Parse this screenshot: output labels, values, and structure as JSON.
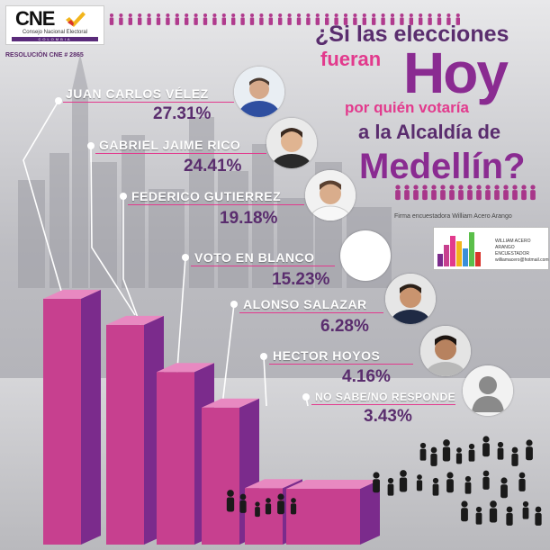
{
  "logo": {
    "text": "CNE",
    "subtitle": "Consejo Nacional Electoral",
    "country": "COLOMBIA"
  },
  "resolucion": "RESOLUCIÓN CNE # 2865",
  "title": {
    "line1": "¿Si las elecciones",
    "line2": "fueran",
    "line3": "Hoy",
    "line4": "por quién votaría",
    "line5": "a la Alcaldía de",
    "line6": "Medellín?"
  },
  "firma": "Firma encuestadora William Acero Arango",
  "card": {
    "name_line1": "WILLIAM ACERO ARANGO",
    "name_line2": "ENCUESTADOR",
    "name_line3": "williamacero@hotmail.com"
  },
  "colors": {
    "accent_pink": "#e23a8d",
    "accent_purple": "#8a2b91",
    "dark_purple": "#5a2d6e",
    "bar_front": "#c7408f",
    "bar_side": "#7b2b8c",
    "bar_top": "#e889c1"
  },
  "candidates": [
    {
      "name": "JUAN CARLOS VÉLEZ",
      "pct": "27.31%"
    },
    {
      "name": "GABRIEL JAIME RICO",
      "pct": "24.41%"
    },
    {
      "name": "FEDERICO GUTIERREZ",
      "pct": "19.18%"
    },
    {
      "name": "VOTO EN BLANCO",
      "pct": "15.23%"
    },
    {
      "name": "ALONSO SALAZAR",
      "pct": "6.28%"
    },
    {
      "name": "HECTOR HOYOS",
      "pct": "4.16%"
    },
    {
      "name": "NO SABE/NO RESPONDE",
      "pct": "3.43%"
    }
  ],
  "chart_data": {
    "type": "bar",
    "categories": [
      "JUAN CARLOS VÉLEZ",
      "GABRIEL JAIME RICO",
      "FEDERICO GUTIERREZ",
      "VOTO EN BLANCO",
      "ALONSO SALAZAR",
      "HECTOR HOYOS",
      "NO SABE/NO RESPONDE"
    ],
    "values": [
      27.31,
      24.41,
      19.18,
      15.23,
      6.28,
      4.16,
      3.43
    ],
    "title": "¿Si las elecciones fueran Hoy por quién votaría a la Alcaldía de Medellín?",
    "xlabel": "",
    "ylabel": "",
    "grid": false
  }
}
